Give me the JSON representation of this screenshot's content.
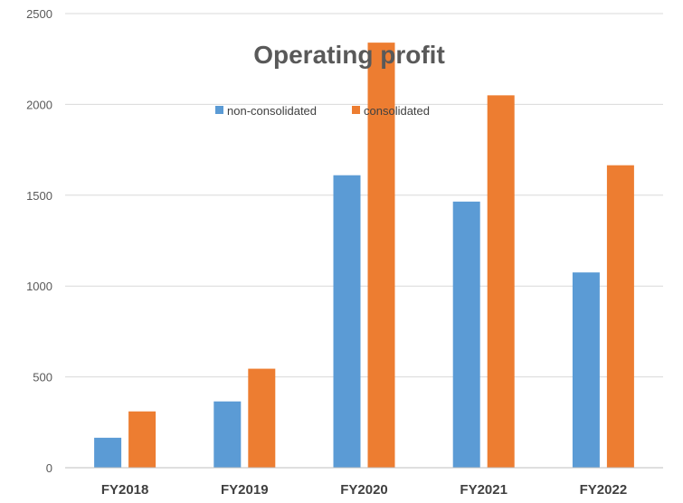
{
  "chart_data": {
    "type": "bar",
    "title": "Operating profit",
    "xlabel": "",
    "ylabel": "",
    "categories": [
      "FY2018",
      "FY2019",
      "FY2020",
      "FY2021",
      "FY2022"
    ],
    "series": [
      {
        "name": "non-consolidated",
        "color": "#5B9BD5",
        "values": [
          165,
          365,
          1610,
          1465,
          1075
        ]
      },
      {
        "name": "consolidated",
        "color": "#ED7D31",
        "values": [
          310,
          545,
          2340,
          2050,
          1665
        ]
      }
    ],
    "ylim": [
      0,
      2500
    ],
    "yticks": [
      0,
      500,
      1000,
      1500,
      2000,
      2500
    ],
    "grid": true,
    "legend_position": "top-center"
  }
}
